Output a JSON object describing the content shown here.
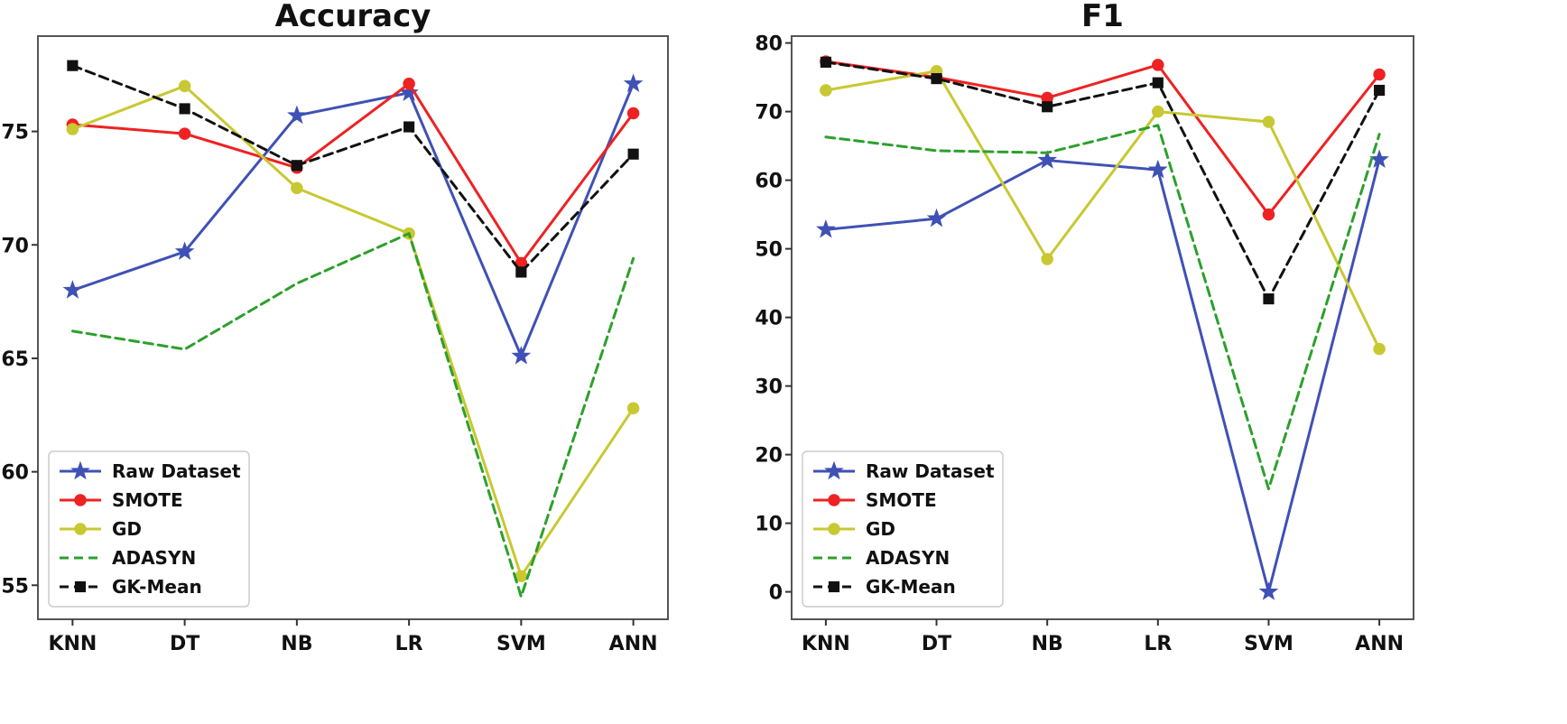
{
  "chart_data": [
    {
      "type": "line",
      "title": "Accuracy",
      "xlabel": "",
      "ylabel": "",
      "categories": [
        "KNN",
        "DT",
        "NB",
        "LR",
        "SVM",
        "ANN"
      ],
      "ylim": [
        53.5,
        79.2
      ],
      "yticks": [
        55,
        60,
        65,
        70,
        75
      ],
      "grid": false,
      "legend": "lower-left",
      "series": [
        {
          "name": "Raw Dataset",
          "color": "#3f51b5",
          "marker": "star",
          "dash": false,
          "values": [
            68.0,
            69.7,
            75.7,
            76.7,
            65.1,
            77.1
          ]
        },
        {
          "name": "SMOTE",
          "color": "#ee2222",
          "marker": "circle",
          "dash": false,
          "values": [
            75.3,
            74.9,
            73.4,
            77.1,
            69.2,
            75.8
          ]
        },
        {
          "name": "GD",
          "color": "#c8c832",
          "marker": "circle",
          "dash": false,
          "values": [
            75.1,
            77.0,
            72.5,
            70.5,
            55.4,
            62.8
          ]
        },
        {
          "name": "ADASYN",
          "color": "#2ca02c",
          "marker": "none",
          "dash": true,
          "values": [
            66.2,
            65.4,
            68.3,
            70.5,
            54.5,
            69.4
          ]
        },
        {
          "name": "GK-Mean",
          "color": "#111111",
          "marker": "square",
          "dash": true,
          "values": [
            77.9,
            76.0,
            73.5,
            75.2,
            68.8,
            74.0
          ]
        }
      ]
    },
    {
      "type": "line",
      "title": "F1",
      "xlabel": "",
      "ylabel": "",
      "categories": [
        "KNN",
        "DT",
        "NB",
        "LR",
        "SVM",
        "ANN"
      ],
      "ylim": [
        -4,
        81
      ],
      "yticks": [
        0,
        10,
        20,
        30,
        40,
        50,
        60,
        70,
        80
      ],
      "grid": false,
      "legend": "lower-left",
      "series": [
        {
          "name": "Raw Dataset",
          "color": "#3f51b5",
          "marker": "star",
          "dash": false,
          "values": [
            52.8,
            54.4,
            62.9,
            61.5,
            0.0,
            63.0
          ]
        },
        {
          "name": "SMOTE",
          "color": "#ee2222",
          "marker": "circle",
          "dash": false,
          "values": [
            77.3,
            75.0,
            72.0,
            76.8,
            55.0,
            75.4
          ]
        },
        {
          "name": "GD",
          "color": "#c8c832",
          "marker": "circle",
          "dash": false,
          "values": [
            73.1,
            75.9,
            48.5,
            70.0,
            68.5,
            35.4
          ]
        },
        {
          "name": "ADASYN",
          "color": "#2ca02c",
          "marker": "none",
          "dash": true,
          "values": [
            66.3,
            64.3,
            64.0,
            68.0,
            15.0,
            66.7
          ]
        },
        {
          "name": "GK-Mean",
          "color": "#111111",
          "marker": "square",
          "dash": true,
          "values": [
            77.2,
            74.8,
            70.7,
            74.2,
            42.7,
            73.1
          ]
        }
      ]
    }
  ]
}
